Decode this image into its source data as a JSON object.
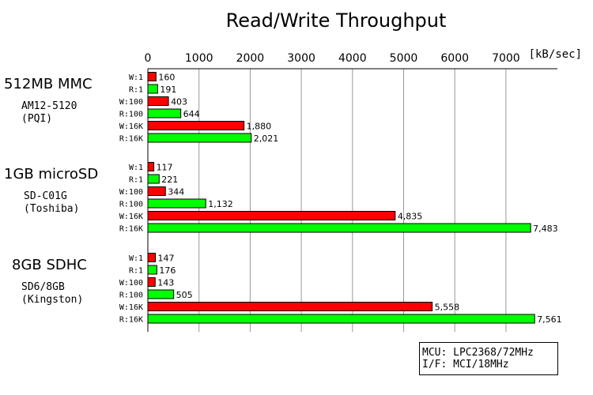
{
  "chart_data": {
    "type": "bar",
    "orientation": "horizontal",
    "title": "Read/Write Throughput",
    "unit_label": "[kB/sec]",
    "xlim": [
      0,
      8000
    ],
    "xticks": [
      0,
      1000,
      2000,
      3000,
      4000,
      5000,
      6000,
      7000
    ],
    "grid": true,
    "colors": {
      "write": "#ff0000",
      "read": "#00ff00"
    },
    "categories": [
      "W:1",
      "R:1",
      "W:100",
      "R:100",
      "W:16K",
      "R:16K"
    ],
    "groups": [
      {
        "name": "512MB MMC",
        "model": "AM12-5120",
        "vendor": "(PQI)",
        "values": [
          160,
          191,
          403,
          644,
          1880,
          2021
        ],
        "labels": [
          "160",
          "191",
          "403",
          "644",
          "1,880",
          "2,021"
        ]
      },
      {
        "name": "1GB microSD",
        "model": "SD-C01G",
        "vendor": "(Toshiba)",
        "values": [
          117,
          221,
          344,
          1132,
          4835,
          7483
        ],
        "labels": [
          "117",
          "221",
          "344",
          "1,132",
          "4,835",
          "7,483"
        ]
      },
      {
        "name": "8GB SDHC",
        "model": "SD6/8GB",
        "vendor": "(Kingston)",
        "values": [
          147,
          176,
          143,
          505,
          5558,
          7561
        ],
        "labels": [
          "147",
          "176",
          "143",
          "505",
          "5,558",
          "7,561"
        ]
      }
    ],
    "annotation": [
      "MCU: LPC2368/72MHz",
      "I/F: MCI/18MHz"
    ]
  }
}
